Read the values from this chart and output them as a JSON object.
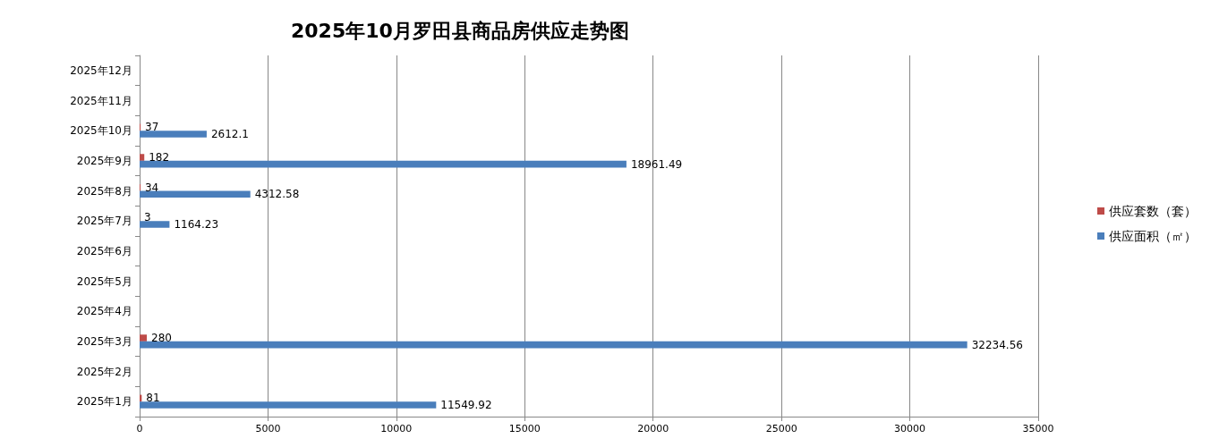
{
  "chart_data": {
    "type": "bar",
    "orientation": "horizontal",
    "title": "2025年10月罗田县商品房供应走势图",
    "categories": [
      "2025年12月",
      "2025年11月",
      "2025年10月",
      "2025年9月",
      "2025年8月",
      "2025年7月",
      "2025年6月",
      "2025年5月",
      "2025年4月",
      "2025年3月",
      "2025年2月",
      "2025年1月"
    ],
    "series": [
      {
        "name": "供应套数（套）",
        "color": "#be4b48",
        "values": [
          null,
          null,
          37,
          182,
          34,
          3,
          null,
          null,
          null,
          280,
          null,
          81
        ]
      },
      {
        "name": "供应面积（㎡）",
        "color": "#4a7ebb",
        "values": [
          null,
          null,
          2612.1,
          18961.49,
          4312.58,
          1164.23,
          null,
          null,
          null,
          32234.56,
          null,
          11549.92
        ]
      }
    ],
    "xlim": [
      0,
      35000
    ],
    "xticks": [
      0,
      5000,
      10000,
      15000,
      20000,
      25000,
      30000,
      35000
    ],
    "grid": "x",
    "legend": "right",
    "data_labels": true
  }
}
